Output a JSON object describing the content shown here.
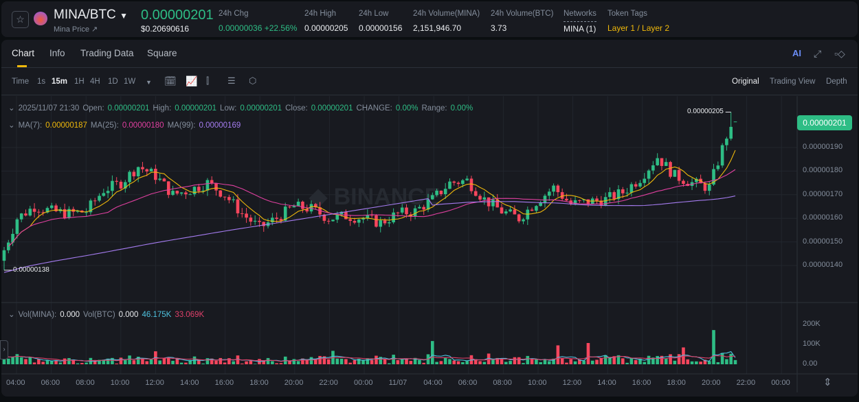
{
  "header": {
    "pair": "MINA/BTC",
    "sub_label": "Mina Price ↗",
    "last_price": "0.00000201",
    "usd_price": "$0.20690616",
    "stats": [
      {
        "label": "24h Chg",
        "value": "0.00000036 +22.56%",
        "color": "#2ebd85"
      },
      {
        "label": "24h High",
        "value": "0.00000205"
      },
      {
        "label": "24h Low",
        "value": "0.00000156"
      },
      {
        "label": "24h Volume(MINA)",
        "value": "2,151,946.70"
      },
      {
        "label": "24h Volume(BTC)",
        "value": "3.73"
      },
      {
        "label": "Networks",
        "value": "MINA (1)"
      },
      {
        "label": "Token Tags",
        "value": "Layer 1 / Layer 2",
        "color": "#f0b90b"
      }
    ]
  },
  "tabs": [
    "Chart",
    "Info",
    "Trading Data",
    "Square"
  ],
  "toolbar": {
    "intervals": [
      "Time",
      "1s",
      "15m",
      "1H",
      "4H",
      "1D",
      "1W"
    ],
    "active": "15m",
    "views": [
      "Original",
      "Trading View",
      "Depth"
    ],
    "ai_label": "AI"
  },
  "legend": {
    "date": "2025/11/07 21:30",
    "open_l": "Open:",
    "open": "0.00000201",
    "high_l": "High:",
    "high": "0.00000201",
    "low_l": "Low:",
    "low": "0.00000201",
    "close_l": "Close:",
    "close": "0.00000201",
    "change_l": "CHANGE:",
    "change": "0.00%",
    "range_l": "Range:",
    "range": "0.00%",
    "ma7_l": "MA(7):",
    "ma7": "0.00000187",
    "ma25_l": "MA(25):",
    "ma25": "0.00000180",
    "ma99_l": "MA(99):",
    "ma99": "0.00000169",
    "vol_l": "Vol(MINA):",
    "vol": "0.000",
    "volbtc_l": "Vol(BTC)",
    "volbtc": "0.000",
    "vma1": "46.175K",
    "vma2": "33.069K"
  },
  "colors": {
    "up": "#2ebd85",
    "down": "#f6465d",
    "ma7": "#f0b90b",
    "ma25": "#e040a0",
    "ma99": "#a57cf0",
    "vma1": "#4fc3e0",
    "vma2": "#e0406a"
  },
  "chart_data": {
    "type": "candlestick",
    "interval": "15m",
    "price_axis": [
      "0.00000190",
      "0.00000180",
      "0.00000170",
      "0.00000160",
      "0.00000150",
      "0.00000140"
    ],
    "vol_axis": [
      "200K",
      "100K",
      "0.00"
    ],
    "time_axis": [
      "04:00",
      "06:00",
      "08:00",
      "10:00",
      "12:00",
      "14:00",
      "16:00",
      "18:00",
      "20:00",
      "22:00",
      "00:00",
      "11/07",
      "04:00",
      "06:00",
      "08:00",
      "10:00",
      "12:00",
      "14:00",
      "16:00",
      "18:00",
      "20:00",
      "22:00",
      "00:00"
    ],
    "hourly_close_e8": [
      142,
      160,
      165,
      163,
      162,
      163,
      172,
      175,
      182,
      178,
      170,
      172,
      175,
      170,
      162,
      156,
      160,
      165,
      164,
      160,
      161,
      160,
      158,
      162,
      163,
      168,
      175,
      176,
      168,
      163,
      160,
      167,
      173,
      166,
      167,
      168,
      171,
      177,
      186,
      178,
      175,
      173,
      195,
      201
    ],
    "current_price": "0.00000201",
    "high_marker": "0.00000205",
    "low_marker": "0.00000138"
  }
}
